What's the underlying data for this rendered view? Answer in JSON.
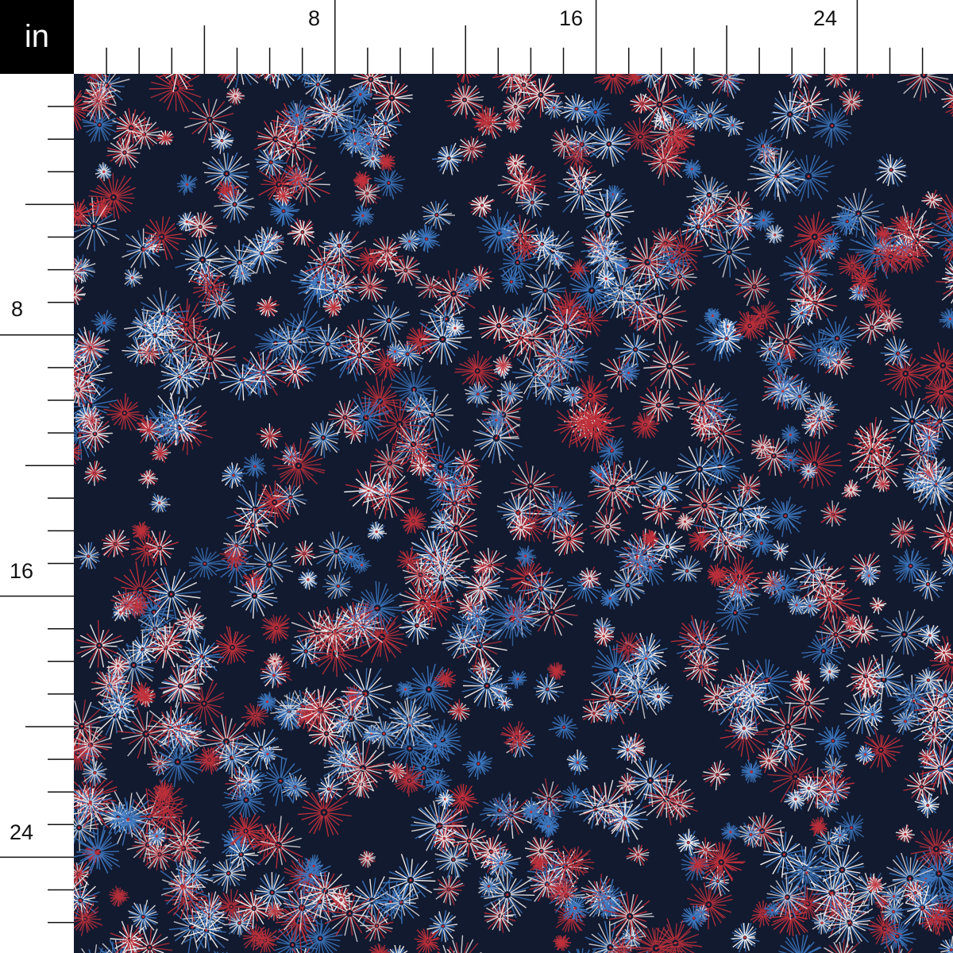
{
  "unit_label": "in",
  "top_ruler": {
    "labels": [
      "8",
      "16",
      "24"
    ]
  },
  "left_ruler": {
    "labels": [
      "8",
      "16",
      "24"
    ]
  },
  "fabric": {
    "pattern": "fireworks",
    "colors": {
      "background": "#121a30",
      "red": "#c0303a",
      "blue": "#3d78c0",
      "white": "#f2eeee"
    }
  }
}
